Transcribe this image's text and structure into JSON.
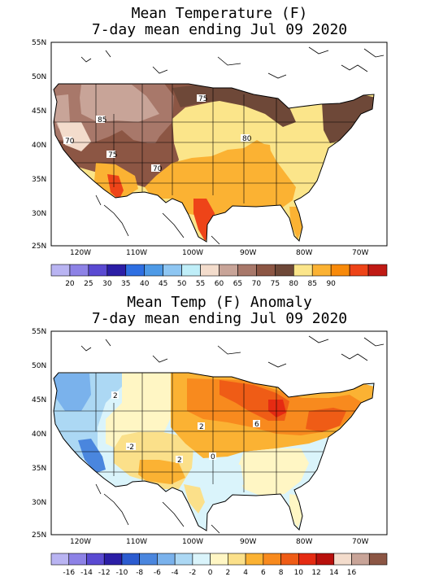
{
  "panels": [
    {
      "title_line1": "Mean Temperature (F)",
      "title_line2": "7-day mean ending Jul 09 2020",
      "lat_labels": [
        "55N",
        "50N",
        "45N",
        "40N",
        "35N",
        "30N",
        "25N"
      ],
      "lon_labels": [
        "120W",
        "110W",
        "100W",
        "90W",
        "80W",
        "70W"
      ],
      "contour_labels": [
        "85",
        "70",
        "75",
        "70",
        "75",
        "80"
      ],
      "legend": {
        "colors": [
          "#b9b4f2",
          "#8d82e6",
          "#5a4ad2",
          "#2b1ea6",
          "#2e6fe2",
          "#4e9ae6",
          "#8ec6f2",
          "#bfeef8",
          "#f3dccc",
          "#c8a498",
          "#a8786a",
          "#8c5644",
          "#6e4838",
          "#fbe58a",
          "#fbb233",
          "#f88a0a",
          "#ee4418",
          "#c01a14"
        ],
        "labels": [
          "20",
          "25",
          "30",
          "35",
          "40",
          "45",
          "50",
          "55",
          "60",
          "65",
          "70",
          "75",
          "80",
          "85",
          "90"
        ]
      }
    },
    {
      "title_line1": "Mean Temp (F) Anomaly",
      "title_line2": "7-day mean ending Jul 09 2020",
      "lat_labels": [
        "55N",
        "50N",
        "45N",
        "40N",
        "35N",
        "30N",
        "25N"
      ],
      "lon_labels": [
        "120W",
        "110W",
        "100W",
        "90W",
        "80W",
        "70W"
      ],
      "contour_labels": [
        "2",
        "2",
        "6",
        "-2",
        "2",
        "0"
      ],
      "legend": {
        "colors": [
          "#b9b4f2",
          "#8d82e6",
          "#5a4ad2",
          "#2b1ea6",
          "#2c5cd0",
          "#4a86de",
          "#7ab2ec",
          "#acd8f4",
          "#daf4fb",
          "#fff6c4",
          "#fbe08a",
          "#fbb233",
          "#f88a1e",
          "#ef5c16",
          "#e52b12",
          "#b8100c",
          "#f3dccc",
          "#c8a498",
          "#8c5644"
        ],
        "labels": [
          "-16",
          "-14",
          "-12",
          "-10",
          "-8",
          "-6",
          "-4",
          "-2",
          "0",
          "2",
          "4",
          "6",
          "8",
          "10",
          "12",
          "14",
          "16"
        ]
      }
    }
  ]
}
